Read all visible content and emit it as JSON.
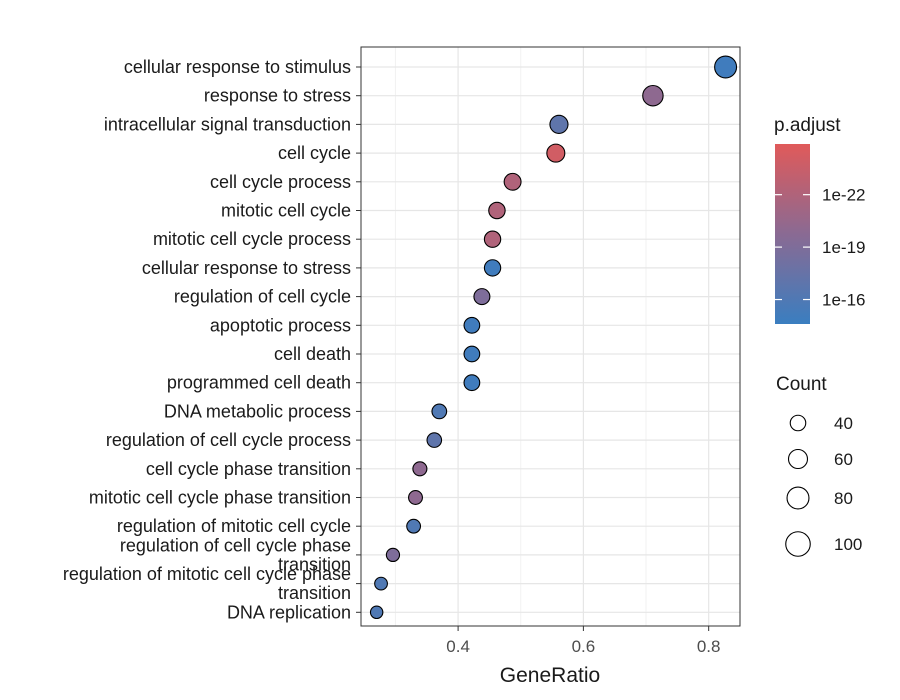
{
  "chart_data": {
    "type": "scatter",
    "title": "",
    "xlabel": "GeneRatio",
    "ylabel": "",
    "xlim": [
      0.245,
      0.85
    ],
    "x_ticks": [
      0.4,
      0.6,
      0.8
    ],
    "x_tick_labels": [
      "0.4",
      "0.6",
      "0.8"
    ],
    "grid": true,
    "points": [
      {
        "category": "cellular response to stimulus",
        "gene_ratio": 0.827,
        "count": 125,
        "p_adjust": 1e-15
      },
      {
        "category": "response to stress",
        "gene_ratio": 0.711,
        "count": 108,
        "p_adjust": 1e-20
      },
      {
        "category": "intracellular signal transduction",
        "gene_ratio": 0.561,
        "count": 85,
        "p_adjust": 1e-17
      },
      {
        "category": "cell cycle",
        "gene_ratio": 0.556,
        "count": 84,
        "p_adjust": 1e-24
      },
      {
        "category": "cell cycle process",
        "gene_ratio": 0.487,
        "count": 74,
        "p_adjust": 1e-22
      },
      {
        "category": "mitotic cell cycle",
        "gene_ratio": 0.462,
        "count": 70,
        "p_adjust": 1e-22
      },
      {
        "category": "mitotic cell cycle process",
        "gene_ratio": 0.455,
        "count": 69,
        "p_adjust": 1e-22
      },
      {
        "category": "cellular response to stress",
        "gene_ratio": 0.455,
        "count": 69,
        "p_adjust": 1e-15
      },
      {
        "category": "regulation of cell cycle",
        "gene_ratio": 0.438,
        "count": 66,
        "p_adjust": 1e-19
      },
      {
        "category": "apoptotic process",
        "gene_ratio": 0.422,
        "count": 64,
        "p_adjust": 1e-15
      },
      {
        "category": "cell death",
        "gene_ratio": 0.422,
        "count": 64,
        "p_adjust": 1e-15
      },
      {
        "category": "programmed cell death",
        "gene_ratio": 0.422,
        "count": 64,
        "p_adjust": 1e-15
      },
      {
        "category": "DNA metabolic process",
        "gene_ratio": 0.37,
        "count": 56,
        "p_adjust": 1e-16
      },
      {
        "category": "regulation of cell cycle process",
        "gene_ratio": 0.362,
        "count": 55,
        "p_adjust": 1e-17
      },
      {
        "category": "cell cycle phase transition",
        "gene_ratio": 0.339,
        "count": 51,
        "p_adjust": 1e-20
      },
      {
        "category": "mitotic cell cycle phase transition",
        "gene_ratio": 0.332,
        "count": 50,
        "p_adjust": 1e-20
      },
      {
        "category": "regulation of mitotic cell cycle",
        "gene_ratio": 0.329,
        "count": 49,
        "p_adjust": 1e-16
      },
      {
        "category": "regulation of cell cycle phase\ntransition",
        "gene_ratio": 0.296,
        "count": 45,
        "p_adjust": 1e-19
      },
      {
        "category": "regulation of mitotic cell cycle phase\ntransition",
        "gene_ratio": 0.277,
        "count": 42,
        "p_adjust": 1e-16
      },
      {
        "category": "DNA replication",
        "gene_ratio": 0.27,
        "count": 40,
        "p_adjust": 1e-16
      }
    ],
    "size_legend": {
      "title": "Count",
      "values": [
        40,
        60,
        80,
        100
      ],
      "labels": [
        "40",
        "60",
        "80",
        "100"
      ]
    },
    "color_legend": {
      "title": "p.adjust",
      "log_range": [
        -24.9,
        -14.6
      ],
      "low_color": "#e05a5a",
      "high_color": "#3a7ec0",
      "mid_color": "#8a6a93",
      "ticks": [
        1e-22,
        1e-19,
        1e-16
      ],
      "tick_labels": [
        "1e-22",
        "1e-19",
        "1e-16"
      ]
    },
    "legend_position": "right"
  }
}
